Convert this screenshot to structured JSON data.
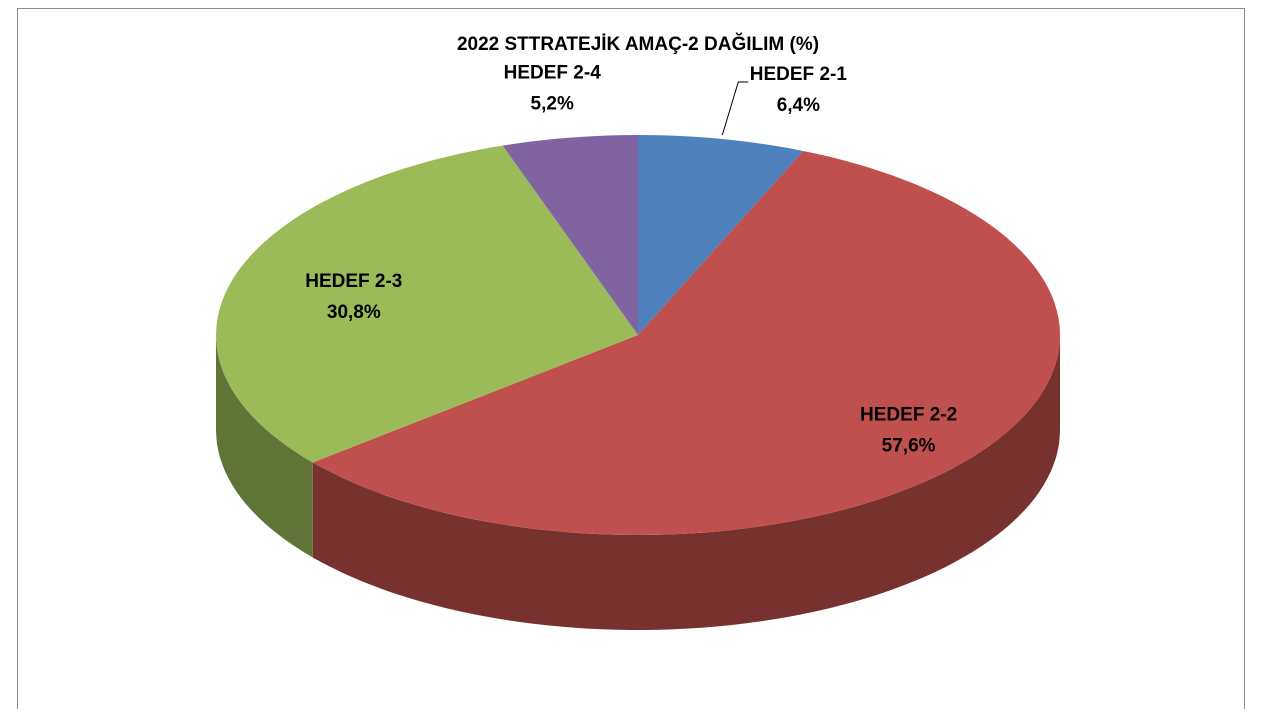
{
  "chart_data": {
    "type": "pie",
    "title": "2022  STTRATEJİK AMAÇ-2 DAĞILIM (%)",
    "categories": [
      "HEDEF 2-1",
      "HEDEF 2-2",
      "HEDEF 2-3",
      "HEDEF 2-4"
    ],
    "values": [
      6.4,
      57.6,
      30.8,
      5.2
    ],
    "value_labels": [
      "6,4%",
      "57,6%",
      "30,8%",
      "5,2%"
    ],
    "colors": [
      "#4f81bd",
      "#c0504d",
      "#9bbb59",
      "#8064a2"
    ]
  }
}
